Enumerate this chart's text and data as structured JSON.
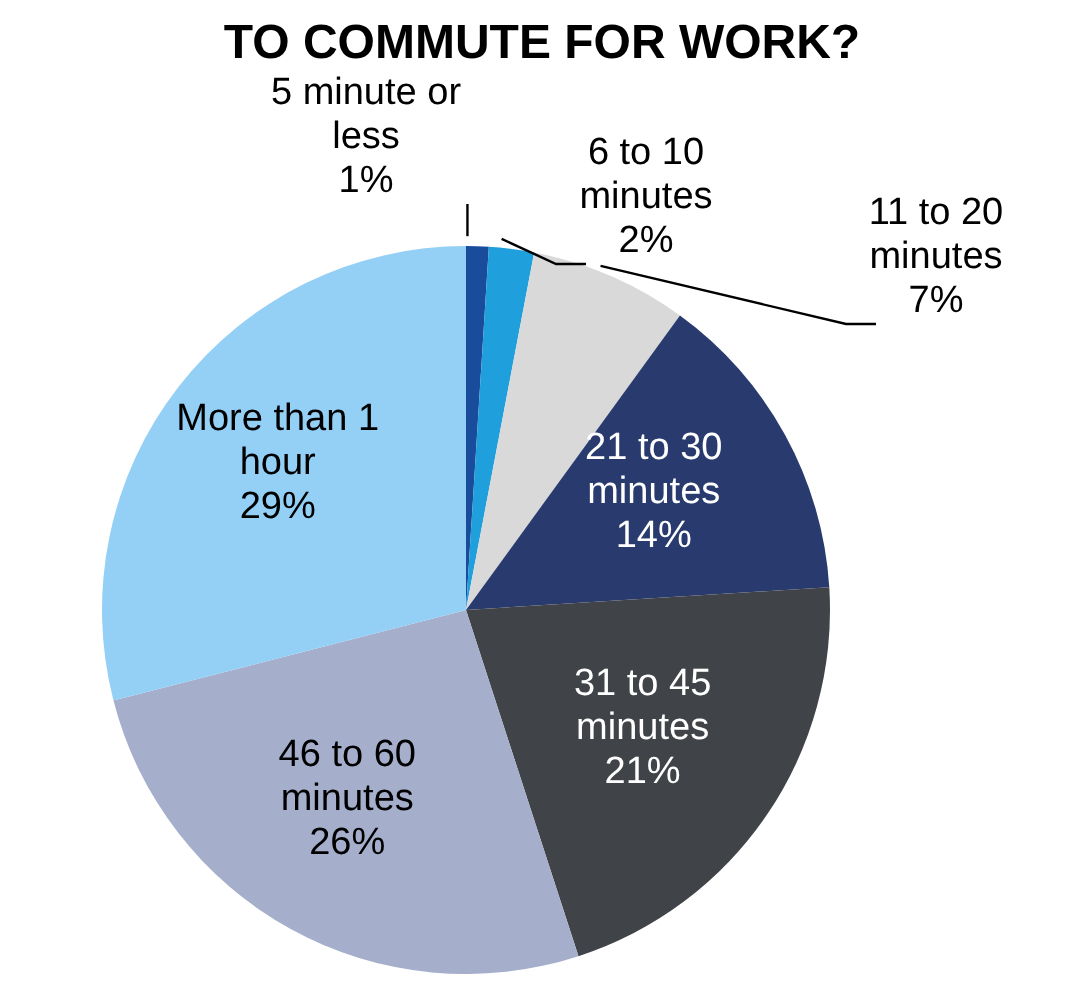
{
  "chart_data": {
    "type": "pie",
    "title": "TO COMMUTE FOR WORK?",
    "categories": [
      "5 minute or less",
      "6 to 10 minutes",
      "11 to 20 minutes",
      "21 to 30 minutes",
      "31 to 45 minutes",
      "46 to 60 minutes",
      "More than 1 hour"
    ],
    "values": [
      1,
      2,
      7,
      14,
      21,
      26,
      29
    ],
    "value_labels": [
      "1%",
      "2%",
      "7%",
      "14%",
      "21%",
      "26%",
      "29%"
    ],
    "colors": [
      "#1a4c9c",
      "#1fa0dc",
      "#d9d9d9",
      "#283a6e",
      "#404347",
      "#a5afcc",
      "#94cff5"
    ]
  }
}
